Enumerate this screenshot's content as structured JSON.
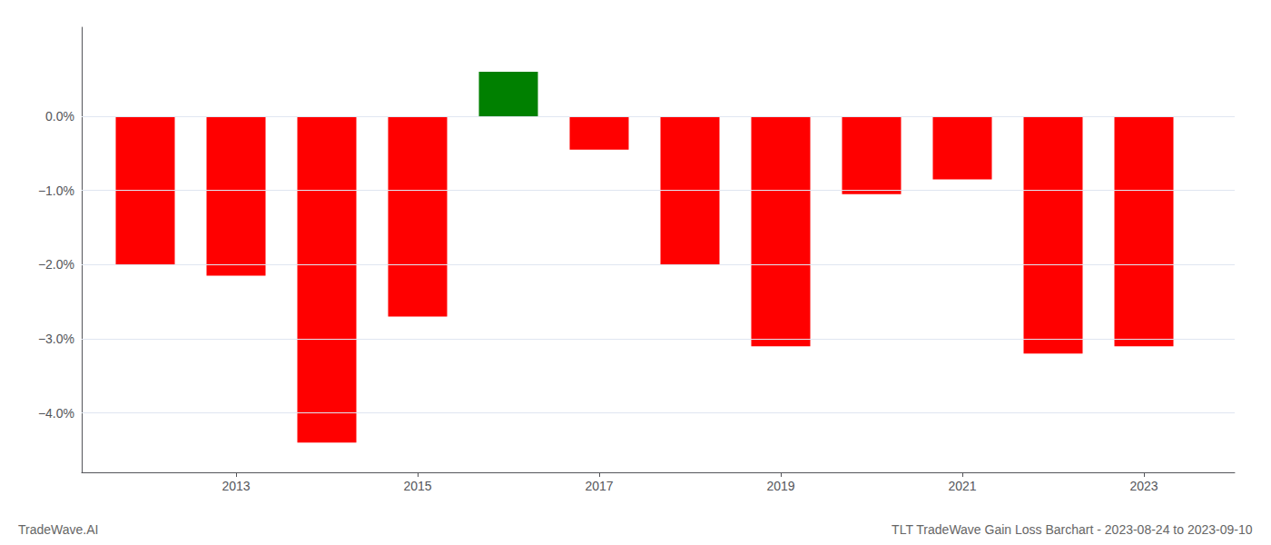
{
  "chart_data": {
    "type": "bar",
    "annotations": [
      "TradeWave.AI",
      "TLT TradeWave Gain Loss Barchart - 2023-08-24 to 2023-09-10"
    ],
    "x": [
      2012,
      2013,
      2014,
      2015,
      2016,
      2017,
      2018,
      2019,
      2020,
      2021,
      2022,
      2023
    ],
    "values": [
      -0.02,
      -0.0215,
      -0.044,
      -0.027,
      0.006,
      -0.0045,
      -0.02,
      -0.031,
      -0.0105,
      -0.0085,
      -0.032,
      -0.031
    ],
    "colors": [
      "#ff0000",
      "#ff0000",
      "#ff0000",
      "#ff0000",
      "#008000",
      "#ff0000",
      "#ff0000",
      "#ff0000",
      "#ff0000",
      "#ff0000",
      "#ff0000",
      "#ff0000"
    ],
    "xlim": [
      2011.3,
      2024.0
    ],
    "xticks": [
      2013,
      2015,
      2017,
      2019,
      2021,
      2023
    ],
    "ylim": [
      -0.048,
      0.012
    ],
    "yticks": [
      {
        "value": -0.04,
        "label": "−4.0%"
      },
      {
        "value": -0.03,
        "label": "−3.0%"
      },
      {
        "value": -0.02,
        "label": "−2.0%"
      },
      {
        "value": -0.01,
        "label": "−1.0%"
      },
      {
        "value": 0.0,
        "label": "0.0%"
      }
    ],
    "grid": true
  }
}
